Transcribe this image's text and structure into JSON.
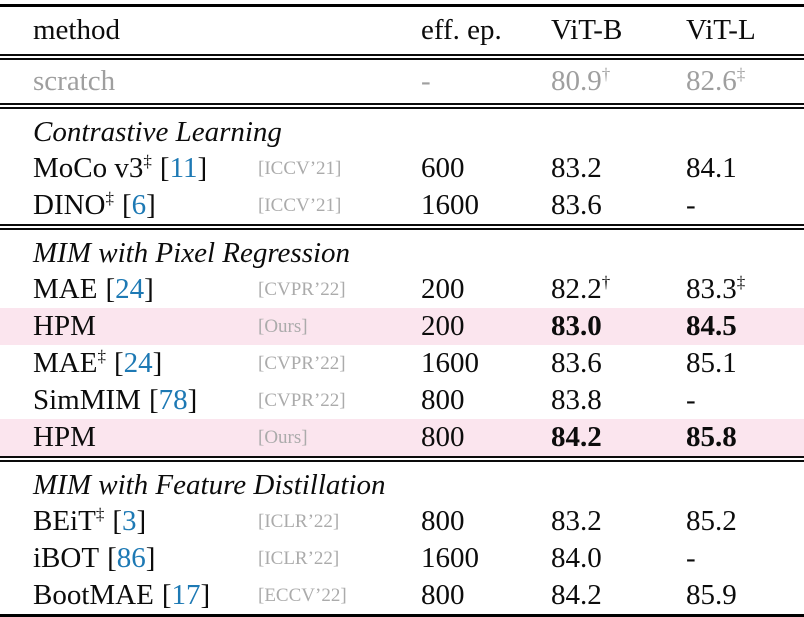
{
  "colors": {
    "citation_blue": "#1d79b4",
    "highlight_pink": "#fbe5ee",
    "gray_muted": "#9f9f9f",
    "venue_gray": "#ababab"
  },
  "symbols": {
    "bracket_open": "[",
    "bracket_close": "]",
    "dagger": "†",
    "double_dagger": "‡",
    "dash": "-"
  },
  "header": {
    "method": "method",
    "eff_ep": "eff. ep.",
    "vit_b": "ViT-B",
    "vit_l": "ViT-L"
  },
  "scratch_row": {
    "method": "scratch",
    "eff_ep": "-",
    "vit_b": "80.9",
    "vit_b_sup": "†",
    "vit_l": "82.6",
    "vit_l_sup": "‡"
  },
  "sections": [
    {
      "title": "Contrastive Learning",
      "rows": [
        {
          "method": "MoCo v3",
          "method_sup": "‡",
          "cite": "11",
          "venue": "[ICCV’21]",
          "eff_ep": "600",
          "vit_b": "83.2",
          "vit_l": "84.1"
        },
        {
          "method": "DINO",
          "method_sup": "‡",
          "cite": "6",
          "venue": "[ICCV’21]",
          "eff_ep": "1600",
          "vit_b": "83.6",
          "vit_l": "-"
        }
      ]
    },
    {
      "title": "MIM with Pixel Regression",
      "rows": [
        {
          "method": "MAE",
          "cite": "24",
          "venue": "[CVPR’22]",
          "eff_ep": "200",
          "vit_b": "82.2",
          "vit_b_sup": "†",
          "vit_l": "83.3",
          "vit_l_sup": "‡"
        },
        {
          "method": "HPM",
          "venue": "[Ours]",
          "eff_ep": "200",
          "vit_b": "83.0",
          "vit_l": "84.5"
        },
        {
          "method": "MAE",
          "method_sup": "‡",
          "cite": "24",
          "venue": "[CVPR’22]",
          "eff_ep": "1600",
          "vit_b": "83.6",
          "vit_l": "85.1"
        },
        {
          "method": "SimMIM",
          "cite": "78",
          "venue": "[CVPR’22]",
          "eff_ep": "800",
          "vit_b": "83.8",
          "vit_l": "-"
        },
        {
          "method": "HPM",
          "venue": "[Ours]",
          "eff_ep": "800",
          "vit_b": "84.2",
          "vit_l": "85.8"
        }
      ]
    },
    {
      "title": "MIM with Feature Distillation",
      "rows": [
        {
          "method": "BEiT",
          "method_sup": "‡",
          "cite": "3",
          "venue": "[ICLR’22]",
          "eff_ep": "800",
          "vit_b": "83.2",
          "vit_l": "85.2"
        },
        {
          "method": "iBOT",
          "cite": "86",
          "venue": "[ICLR’22]",
          "eff_ep": "1600",
          "vit_b": "84.0",
          "vit_l": "-"
        },
        {
          "method": "BootMAE",
          "cite": "17",
          "venue": "[ECCV’22]",
          "eff_ep": "800",
          "vit_b": "84.2",
          "vit_l": "85.9"
        }
      ]
    }
  ]
}
